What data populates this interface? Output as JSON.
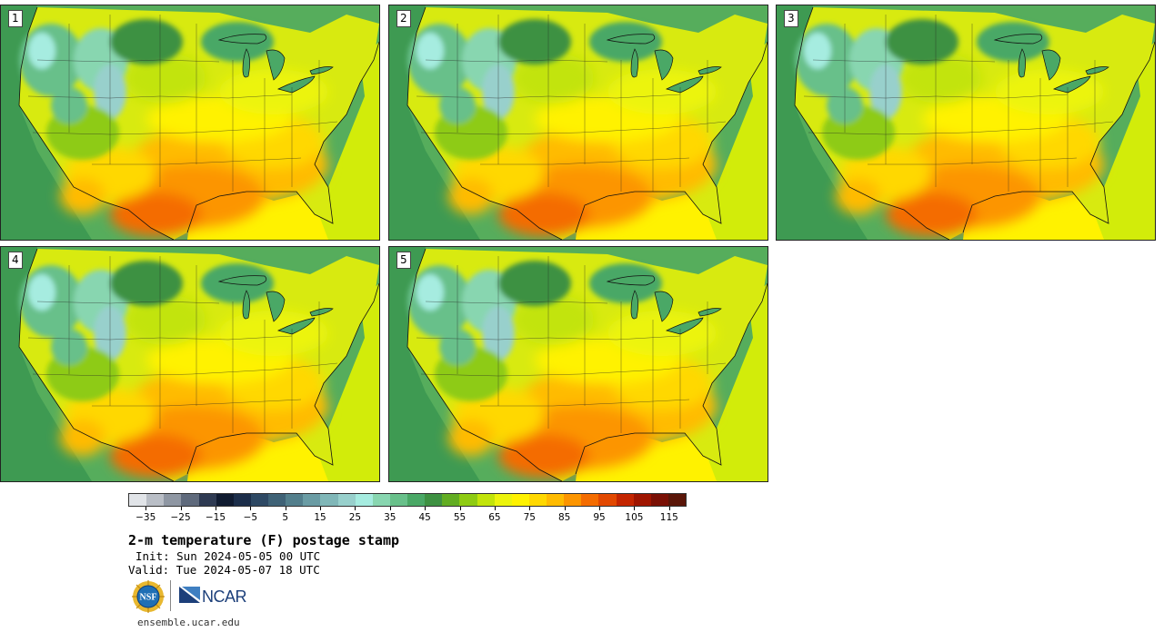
{
  "panels": [
    {
      "label": "1"
    },
    {
      "label": "2"
    },
    {
      "label": "3"
    },
    {
      "label": "4"
    },
    {
      "label": "5"
    }
  ],
  "colorbar": {
    "colors": [
      "#e1e4e8",
      "#b9bec6",
      "#8f97a3",
      "#5f6a7c",
      "#2e3a52",
      "#101b30",
      "#1c2e4a",
      "#2e4964",
      "#3f6276",
      "#537f8c",
      "#6a9ca4",
      "#80b7b8",
      "#98d0cc",
      "#a6ece0",
      "#88d6b0",
      "#68c08a",
      "#4aa866",
      "#3e9142",
      "#62ad22",
      "#8ecb12",
      "#c2e40a",
      "#ecf40c",
      "#fff200",
      "#ffd800",
      "#ffbb00",
      "#fc9500",
      "#f46c00",
      "#e24800",
      "#c42500",
      "#9f1500",
      "#7a1005",
      "#5a1608"
    ],
    "ticks": [
      "−35",
      "−25",
      "−15",
      "−5",
      "5",
      "15",
      "25",
      "35",
      "45",
      "55",
      "65",
      "75",
      "85",
      "95",
      "105",
      "115"
    ],
    "tick_values": [
      -35,
      -25,
      -15,
      -5,
      5,
      15,
      25,
      35,
      45,
      55,
      65,
      75,
      85,
      95,
      105,
      115
    ],
    "range": [
      -40,
      120
    ]
  },
  "title": "2-m temperature (F) postage stamp",
  "init": "Init: Sun 2024-05-05 00 UTC",
  "valid": "Valid: Tue 2024-05-07 18 UTC",
  "logos": {
    "nsf": "NSF",
    "ncar": "NCAR"
  },
  "footer": "ensemble.ucar.edu"
}
